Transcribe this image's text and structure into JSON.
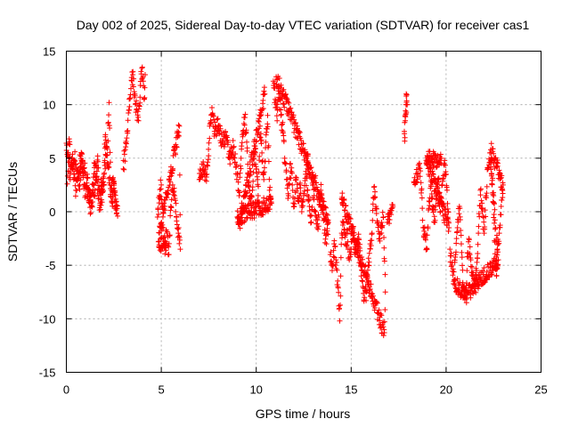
{
  "chart_data": {
    "type": "scatter",
    "title": "Day 002 of 2025, Sidereal Day-to-day VTEC variation (SDTVAR) for receiver cas1",
    "xlabel": "GPS time / hours",
    "ylabel": "SDTVAR / TECUs",
    "xlim": [
      0,
      25
    ],
    "ylim": [
      -15,
      15
    ],
    "xticks": [
      0,
      5,
      10,
      15,
      20,
      25
    ],
    "yticks": [
      -15,
      -10,
      -5,
      0,
      5,
      10,
      15
    ],
    "xtick_labels": [
      "0",
      "5",
      "10",
      "15",
      "20",
      "25"
    ],
    "ytick_labels": [
      "-15",
      "-10",
      "-5",
      "0",
      "5",
      "10",
      "15"
    ],
    "grid": true,
    "marker": "+",
    "color": "#ff0000",
    "series": [
      {
        "name": "SDTVAR",
        "segments": [
          [
            [
              0.0,
              6.4
            ],
            [
              0.1,
              5.5
            ],
            [
              0.2,
              3.0
            ],
            [
              0.3,
              5.0
            ],
            [
              0.4,
              3.5
            ],
            [
              0.5,
              2.0
            ],
            [
              0.6,
              4.0
            ],
            [
              0.7,
              2.5
            ],
            [
              0.8,
              4.8
            ],
            [
              0.9,
              3.2
            ],
            [
              1.0,
              1.5
            ],
            [
              1.1,
              3.5
            ],
            [
              1.2,
              2.0
            ],
            [
              1.3,
              0.8
            ],
            [
              1.4,
              2.6
            ],
            [
              1.5,
              4.5
            ],
            [
              1.6,
              3.0
            ],
            [
              1.7,
              1.2
            ],
            [
              1.8,
              0.2
            ],
            [
              1.9,
              1.8
            ],
            [
              2.0,
              3.6
            ],
            [
              2.1,
              6.0
            ],
            [
              2.2,
              4.5
            ],
            [
              2.3,
              2.5
            ],
            [
              2.4,
              1.0
            ],
            [
              2.5,
              2.2
            ],
            [
              2.6,
              0.5
            ],
            [
              2.7,
              -0.4
            ]
          ],
          [
            [
              0.05,
              2.6
            ],
            [
              0.15,
              6.8
            ],
            [
              0.25,
              4.2
            ],
            [
              0.45,
              5.6
            ],
            [
              0.55,
              3.1
            ],
            [
              0.75,
              5.2
            ],
            [
              0.95,
              4.1
            ],
            [
              1.05,
              2.3
            ],
            [
              1.25,
              0.4
            ],
            [
              1.45,
              1.5
            ],
            [
              1.65,
              5.2
            ],
            [
              1.75,
              2.1
            ],
            [
              1.95,
              2.8
            ],
            [
              2.05,
              7.0
            ],
            [
              2.15,
              5.3
            ],
            [
              2.25,
              10.2
            ],
            [
              2.35,
              1.4
            ],
            [
              2.45,
              3.0
            ],
            [
              2.55,
              1.8
            ],
            [
              2.65,
              -0.1
            ]
          ],
          [
            [
              3.0,
              4.0
            ],
            [
              3.1,
              5.8
            ],
            [
              3.2,
              7.5
            ],
            [
              3.3,
              9.5
            ],
            [
              3.4,
              11.5
            ],
            [
              3.5,
              12.8
            ],
            [
              3.6,
              11.0
            ],
            [
              3.7,
              9.5
            ],
            [
              3.8,
              8.5
            ],
            [
              3.9,
              11.8
            ],
            [
              4.0,
              13.5
            ],
            [
              4.05,
              12.2
            ],
            [
              4.1,
              10.5
            ],
            [
              4.15,
              12.8
            ]
          ],
          [
            [
              4.8,
              -0.5
            ],
            [
              4.9,
              1.5
            ],
            [
              5.0,
              2.5
            ],
            [
              5.1,
              -1.5
            ],
            [
              5.2,
              -3.0
            ],
            [
              5.3,
              -2.0
            ],
            [
              5.4,
              -4.0
            ],
            [
              5.5,
              0.5
            ],
            [
              5.6,
              2.5
            ],
            [
              5.7,
              1.5
            ],
            [
              5.8,
              -0.5
            ],
            [
              5.9,
              -2.0
            ],
            [
              6.0,
              -3.5
            ],
            [
              5.95,
              8.0
            ],
            [
              4.85,
              -2.8
            ],
            [
              5.25,
              -3.6
            ]
          ],
          [
            [
              7.0,
              3.0
            ],
            [
              7.2,
              4.0
            ],
            [
              7.4,
              3.5
            ],
            [
              7.6,
              8.5
            ],
            [
              7.7,
              9.2
            ],
            [
              7.8,
              7.5
            ],
            [
              8.0,
              8.0
            ],
            [
              8.2,
              6.5
            ],
            [
              8.4,
              7.0
            ],
            [
              8.6,
              5.0
            ],
            [
              8.8,
              6.0
            ],
            [
              9.0,
              3.5
            ],
            [
              9.1,
              1.5
            ],
            [
              9.2,
              5.0
            ],
            [
              9.3,
              7.5
            ],
            [
              9.4,
              8.8
            ],
            [
              9.5,
              6.5
            ],
            [
              9.6,
              2.5
            ],
            [
              9.7,
              1.0
            ],
            [
              9.8,
              2.0
            ],
            [
              9.9,
              5.5
            ],
            [
              10.0,
              4.0
            ],
            [
              10.1,
              1.5
            ],
            [
              10.2,
              8.0
            ],
            [
              10.3,
              5.5
            ],
            [
              10.4,
              3.0
            ],
            [
              10.5,
              6.5
            ],
            [
              10.6,
              9.0
            ],
            [
              10.7,
              2.0
            ],
            [
              10.8,
              0.8
            ],
            [
              9.0,
              -0.5
            ],
            [
              9.1,
              -1.2
            ],
            [
              10.45,
              11.0
            ]
          ],
          [
            [
              10.9,
              12.2
            ],
            [
              11.0,
              10.5
            ],
            [
              11.1,
              8.5
            ],
            [
              11.2,
              11.0
            ],
            [
              11.3,
              9.0
            ],
            [
              11.4,
              7.5
            ],
            [
              11.5,
              5.0
            ],
            [
              11.6,
              3.0
            ],
            [
              11.7,
              1.5
            ],
            [
              11.8,
              4.5
            ],
            [
              11.9,
              2.5
            ],
            [
              12.0,
              0.5
            ],
            [
              12.1,
              3.0
            ],
            [
              12.2,
              1.0
            ],
            [
              12.3,
              2.5
            ],
            [
              12.4,
              0.0
            ],
            [
              12.5,
              1.5
            ],
            [
              12.6,
              3.5
            ],
            [
              12.7,
              2.0
            ],
            [
              12.8,
              0.5
            ],
            [
              12.9,
              -1.0
            ],
            [
              13.0,
              2.5
            ],
            [
              13.1,
              0.0
            ],
            [
              13.2,
              -1.5
            ],
            [
              13.3,
              -0.5
            ],
            [
              13.4,
              2.0
            ],
            [
              13.5,
              1.0
            ],
            [
              13.6,
              -2.0
            ],
            [
              13.7,
              -3.0
            ],
            [
              13.8,
              -1.0
            ],
            [
              12.65,
              5.0
            ],
            [
              12.75,
              4.5
            ],
            [
              11.05,
              12.6
            ]
          ],
          [
            [
              13.9,
              -4.0
            ],
            [
              14.0,
              -5.5
            ],
            [
              14.1,
              -3.0
            ],
            [
              14.2,
              -4.5
            ],
            [
              14.3,
              -7.0
            ],
            [
              14.35,
              -8.8
            ],
            [
              14.4,
              -10.2
            ],
            [
              14.45,
              -6.0
            ],
            [
              14.5,
              -2.0
            ],
            [
              14.6,
              -1.0
            ],
            [
              14.7,
              -3.0
            ],
            [
              14.8,
              -2.0
            ],
            [
              14.9,
              -4.5
            ],
            [
              15.0,
              -3.5
            ],
            [
              15.1,
              -1.5
            ],
            [
              15.2,
              -4.0
            ],
            [
              15.3,
              -3.0
            ],
            [
              15.4,
              -2.5
            ],
            [
              15.5,
              -5.0
            ],
            [
              15.6,
              -6.5
            ],
            [
              15.7,
              -8.0
            ],
            [
              15.8,
              -7.5
            ],
            [
              15.9,
              -5.0
            ],
            [
              16.0,
              -3.0
            ],
            [
              16.1,
              -2.0
            ],
            [
              16.2,
              2.3
            ],
            [
              16.3,
              0.5
            ],
            [
              16.4,
              -1.0
            ],
            [
              16.5,
              -2.5
            ],
            [
              16.6,
              -1.0
            ],
            [
              16.7,
              -0.5
            ],
            [
              16.8,
              -7.5
            ],
            [
              16.75,
              -11.3
            ],
            [
              14.5,
              1.2
            ],
            [
              14.55,
              0.8
            ]
          ],
          [
            [
              16.9,
              -1.0
            ],
            [
              17.2,
              0.5
            ]
          ],
          [
            [
              17.9,
              11.0
            ],
            [
              17.95,
              10.0
            ],
            [
              17.85,
              8.5
            ],
            [
              17.8,
              7.5
            ],
            [
              17.82,
              6.6
            ],
            [
              17.9,
              10.8
            ]
          ],
          [
            [
              18.3,
              2.8
            ],
            [
              18.5,
              3.5
            ],
            [
              18.6,
              4.5
            ],
            [
              18.7,
              2.0
            ],
            [
              18.8,
              -1.5
            ],
            [
              18.9,
              -2.5
            ],
            [
              19.0,
              -3.5
            ],
            [
              19.1,
              1.0
            ],
            [
              19.2,
              2.5
            ],
            [
              19.3,
              0.5
            ],
            [
              19.4,
              -1.0
            ],
            [
              19.5,
              1.5
            ],
            [
              19.6,
              3.0
            ],
            [
              19.7,
              0.0
            ],
            [
              19.8,
              2.5
            ],
            [
              19.9,
              4.5
            ],
            [
              20.0,
              3.5
            ],
            [
              20.05,
              2.0
            ],
            [
              20.1,
              0.0
            ],
            [
              20.15,
              -1.5
            ],
            [
              18.95,
              4.8
            ],
            [
              19.75,
              5.0
            ]
          ],
          [
            [
              20.2,
              -3.5
            ],
            [
              20.3,
              -5.0
            ],
            [
              20.4,
              -6.5
            ],
            [
              20.5,
              -4.0
            ],
            [
              20.6,
              -1.5
            ],
            [
              20.7,
              0.5
            ],
            [
              20.8,
              -3.0
            ],
            [
              20.9,
              -7.0
            ],
            [
              21.0,
              -8.0
            ],
            [
              21.1,
              -5.5
            ],
            [
              21.2,
              -2.5
            ],
            [
              21.3,
              -4.5
            ],
            [
              21.4,
              -6.0
            ],
            [
              21.5,
              -7.0
            ],
            [
              21.6,
              -5.5
            ],
            [
              21.7,
              -2.0
            ],
            [
              21.8,
              2.0
            ],
            [
              21.9,
              0.0
            ],
            [
              22.0,
              -2.0
            ],
            [
              22.1,
              1.5
            ],
            [
              22.2,
              4.0
            ],
            [
              22.3,
              5.5
            ],
            [
              22.4,
              3.5
            ],
            [
              22.5,
              1.5
            ],
            [
              22.6,
              -1.5
            ],
            [
              22.7,
              -3.5
            ],
            [
              22.8,
              -2.0
            ],
            [
              22.9,
              0.5
            ],
            [
              23.0,
              2.5
            ],
            [
              22.35,
              5.8
            ],
            [
              22.65,
              -6.0
            ],
            [
              22.75,
              -4.5
            ],
            [
              21.05,
              -7.8
            ],
            [
              20.45,
              -6.8
            ]
          ]
        ]
      }
    ]
  }
}
